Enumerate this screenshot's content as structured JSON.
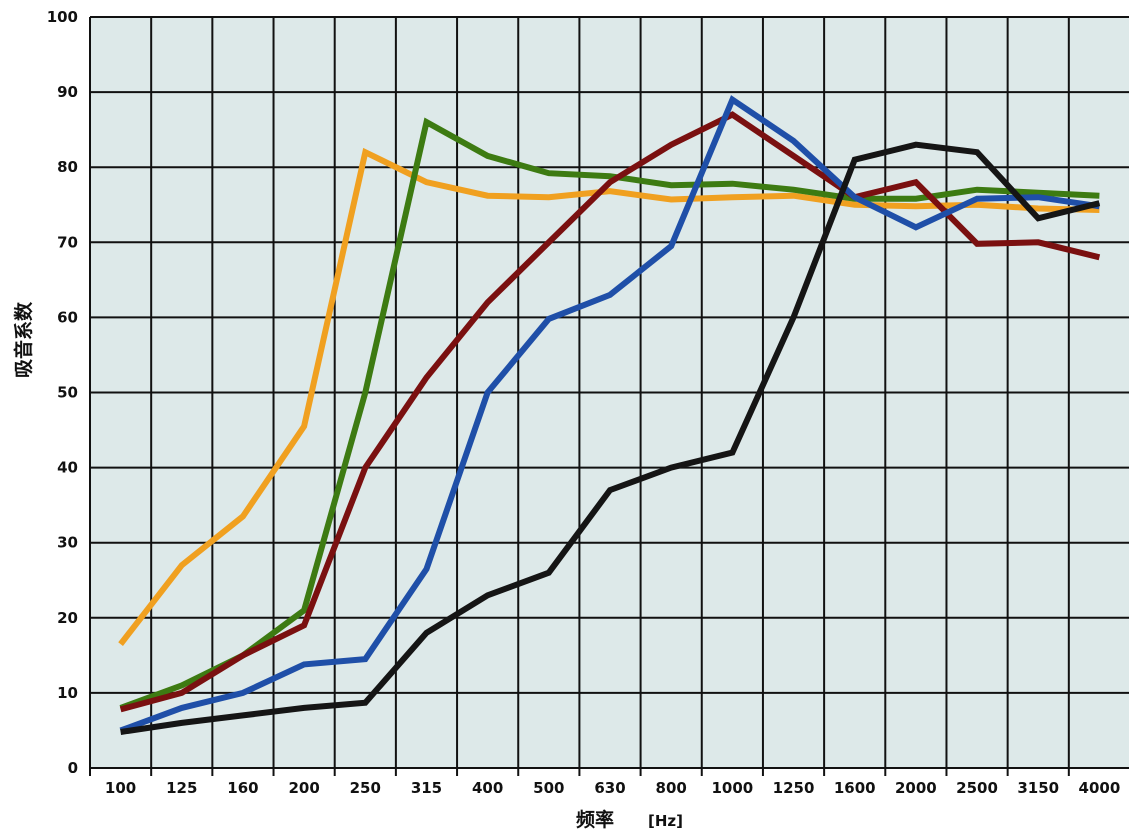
{
  "chart_data": {
    "type": "line",
    "categories": [
      "100",
      "125",
      "160",
      "200",
      "250",
      "315",
      "400",
      "500",
      "630",
      "800",
      "1000",
      "1250",
      "1600",
      "2000",
      "2500",
      "3150",
      "4000"
    ],
    "yticks": [
      0,
      10,
      20,
      30,
      40,
      50,
      60,
      70,
      80,
      90,
      100
    ],
    "ylim": [
      0,
      100
    ],
    "xlabel": "频率",
    "xunit": "[Hz]",
    "ylabel": "吸音系数",
    "grid": true,
    "plot_bg": "#dde9e9",
    "series": [
      {
        "color": "#f0a020",
        "values": [
          16.5,
          27,
          33.5,
          45.5,
          82,
          78,
          76.2,
          76,
          76.8,
          75.7,
          76,
          76.2,
          75,
          74.8,
          75,
          74.5,
          74.3
        ]
      },
      {
        "color": "#3d7b12",
        "values": [
          8,
          11,
          15,
          21,
          50,
          86,
          81.5,
          79.2,
          78.8,
          77.6,
          77.8,
          77,
          75.8,
          75.8,
          77,
          76.6,
          76.2
        ]
      },
      {
        "color": "#7a1010",
        "values": [
          7.8,
          10,
          15,
          19,
          40,
          52,
          62,
          70,
          78,
          83,
          87,
          81.5,
          76,
          78,
          69.8,
          70,
          68
        ]
      },
      {
        "color": "#1f4fa8",
        "values": [
          5,
          8,
          10,
          13.8,
          14.5,
          26.5,
          50,
          59.8,
          63,
          69.5,
          89,
          83.5,
          76,
          72,
          75.8,
          76,
          74.8
        ]
      },
      {
        "color": "#151515",
        "values": [
          4.8,
          6,
          7,
          8,
          8.7,
          18,
          23,
          26,
          37,
          40,
          42,
          60,
          81,
          83,
          82,
          73.2,
          75.2
        ]
      }
    ]
  }
}
